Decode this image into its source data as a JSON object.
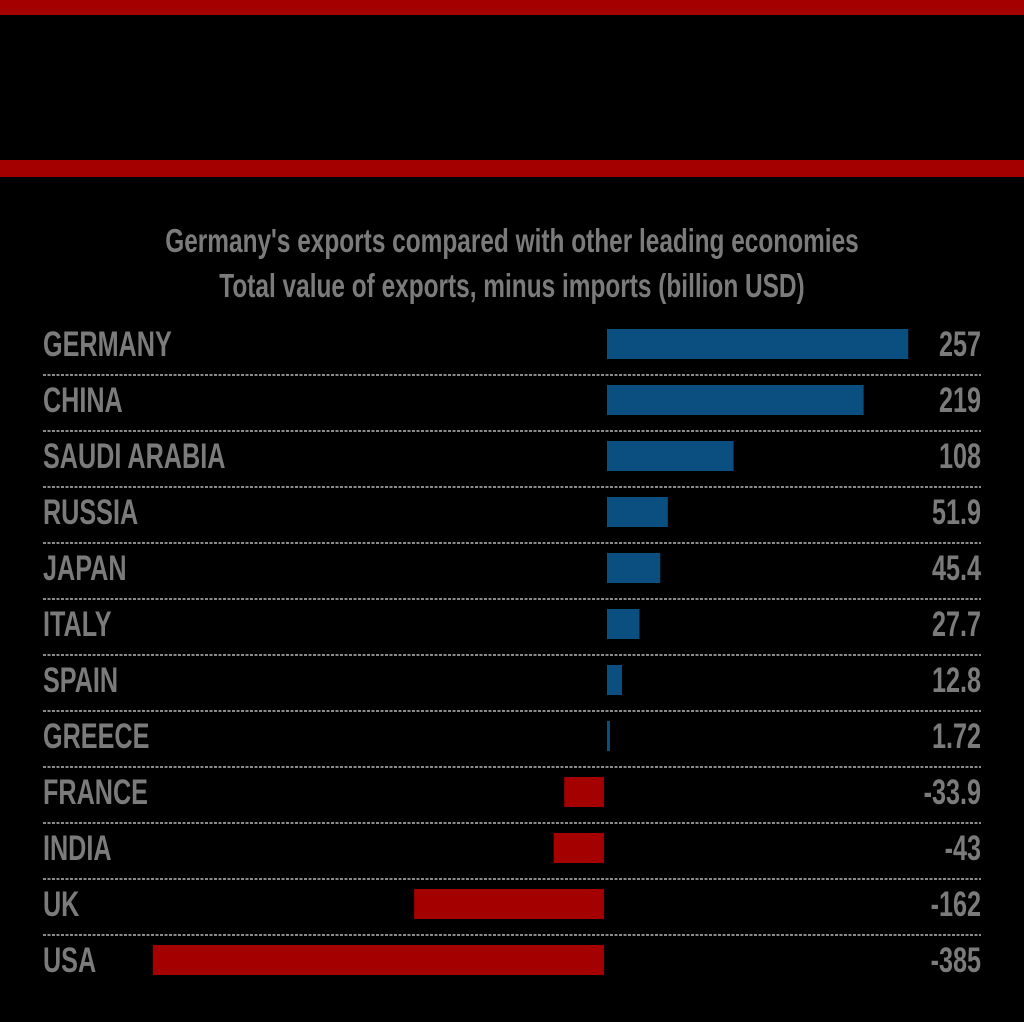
{
  "colors": {
    "background": "#000000",
    "accent_band": "#a50000",
    "positive": "#0a4f80",
    "negative": "#a50000",
    "text": "#7b7b7b",
    "separator": "#8a8a8a"
  },
  "chart_data": {
    "type": "bar",
    "orientation": "horizontal",
    "title": "Germany's exports compared with other leading economies",
    "subtitle": "Total value of exports, minus imports (billion USD)",
    "categories": [
      "GERMANY",
      "CHINA",
      "SAUDI ARABIA",
      "RUSSIA",
      "JAPAN",
      "ITALY",
      "SPAIN",
      "GREECE",
      "FRANCE",
      "INDIA",
      "UK",
      "USA"
    ],
    "values": [
      257,
      219,
      108,
      51.9,
      45.4,
      27.7,
      12.8,
      1.72,
      -33.9,
      -43,
      -162,
      -385
    ],
    "value_labels": [
      "257",
      "219",
      "108",
      "51.9",
      "45.4",
      "27.7",
      "12.8",
      "1.72",
      "-33.9",
      "-43",
      "-162",
      "-385"
    ],
    "xlim": [
      -385,
      257
    ],
    "grid": false,
    "legend": "none"
  }
}
